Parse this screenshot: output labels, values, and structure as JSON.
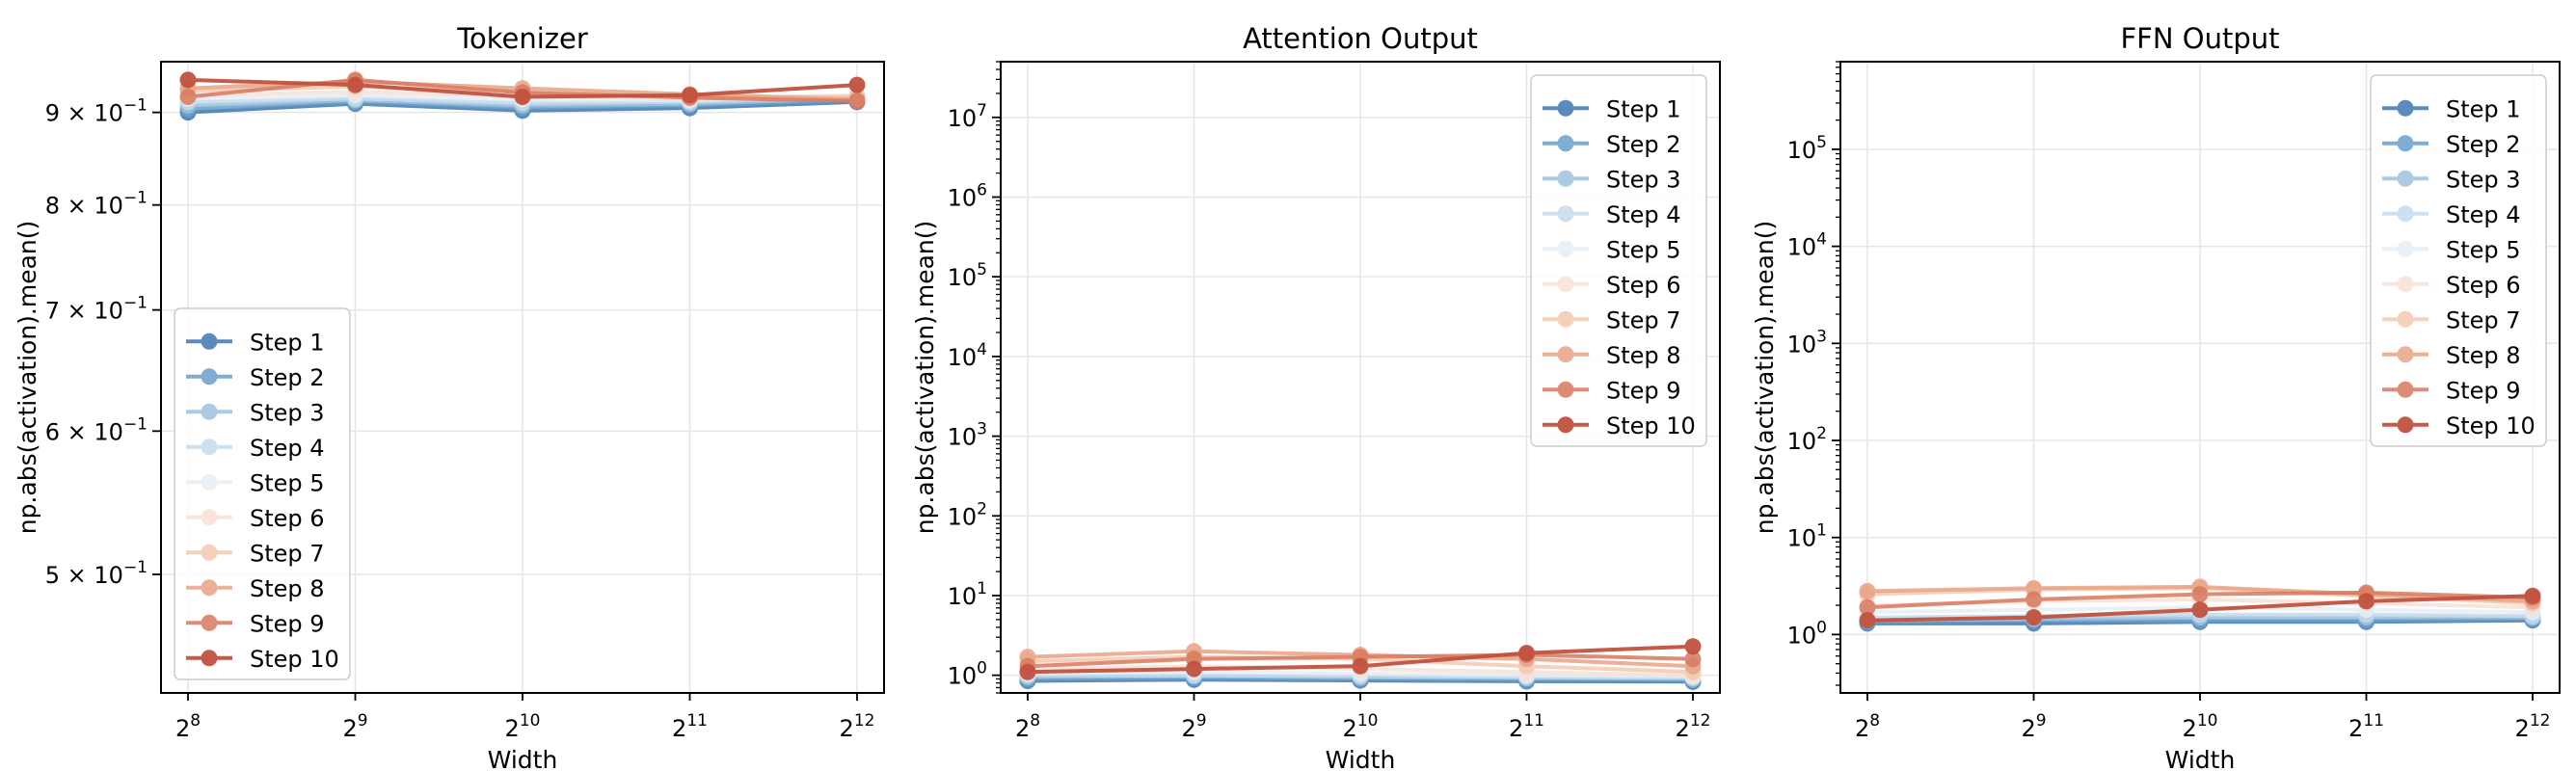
{
  "chart_data": [
    {
      "type": "line",
      "title": "Tokenizer",
      "xlabel": "Width",
      "ylabel": "np.abs(activation).mean()",
      "x_scale": "log2",
      "y_scale": "log",
      "x": [
        256,
        512,
        1024,
        2048,
        4096
      ],
      "x_ticks": [
        {
          "base": "2",
          "exp": "8"
        },
        {
          "base": "2",
          "exp": "9"
        },
        {
          "base": "2",
          "exp": "10"
        },
        {
          "base": "2",
          "exp": "11"
        },
        {
          "base": "2",
          "exp": "12"
        }
      ],
      "ylim": [
        0.43,
        0.96
      ],
      "y_ticks": [
        {
          "value": 0.9,
          "mant": "9 × 10",
          "exp": "−1"
        },
        {
          "value": 0.8,
          "mant": "8 × 10",
          "exp": "−1"
        },
        {
          "value": 0.7,
          "mant": "7 × 10",
          "exp": "−1"
        },
        {
          "value": 0.6,
          "mant": "6 × 10",
          "exp": "−1"
        },
        {
          "value": 0.5,
          "mant": "5 × 10",
          "exp": "−1"
        }
      ],
      "legend_position": "lower-left",
      "grid": true,
      "series": [
        {
          "name": "Step 1",
          "values": [
            0.9,
            0.91,
            0.902,
            0.905,
            0.912
          ]
        },
        {
          "name": "Step 2",
          "values": [
            0.904,
            0.912,
            0.905,
            0.908,
            0.914
          ]
        },
        {
          "name": "Step 3",
          "values": [
            0.908,
            0.914,
            0.908,
            0.91,
            0.916
          ]
        },
        {
          "name": "Step 4",
          "values": [
            0.912,
            0.916,
            0.911,
            0.912,
            0.918
          ]
        },
        {
          "name": "Step 5",
          "values": [
            0.916,
            0.92,
            0.915,
            0.914,
            0.919
          ]
        },
        {
          "name": "Step 6",
          "values": [
            0.92,
            0.924,
            0.919,
            0.916,
            0.92
          ]
        },
        {
          "name": "Step 7",
          "values": [
            0.925,
            0.93,
            0.924,
            0.918,
            0.918
          ]
        },
        {
          "name": "Step 8",
          "values": [
            0.928,
            0.936,
            0.928,
            0.921,
            0.915
          ]
        },
        {
          "name": "Step 9",
          "values": [
            0.918,
            0.938,
            0.923,
            0.917,
            0.913
          ]
        },
        {
          "name": "Step 10",
          "values": [
            0.938,
            0.932,
            0.918,
            0.92,
            0.932
          ]
        }
      ]
    },
    {
      "type": "line",
      "title": "Attention Output",
      "xlabel": "Width",
      "ylabel": "np.abs(activation).mean()",
      "x_scale": "log2",
      "y_scale": "log",
      "x": [
        256,
        512,
        1024,
        2048,
        4096
      ],
      "x_ticks": [
        {
          "base": "2",
          "exp": "8"
        },
        {
          "base": "2",
          "exp": "9"
        },
        {
          "base": "2",
          "exp": "10"
        },
        {
          "base": "2",
          "exp": "11"
        },
        {
          "base": "2",
          "exp": "12"
        }
      ],
      "ylim": [
        0.6,
        50000000
      ],
      "y_ticks": [
        {
          "value": 1,
          "mant": "10",
          "exp": "0"
        },
        {
          "value": 10,
          "mant": "10",
          "exp": "1"
        },
        {
          "value": 100,
          "mant": "10",
          "exp": "2"
        },
        {
          "value": 1000,
          "mant": "10",
          "exp": "3"
        },
        {
          "value": 10000,
          "mant": "10",
          "exp": "4"
        },
        {
          "value": 100000,
          "mant": "10",
          "exp": "5"
        },
        {
          "value": 1000000,
          "mant": "10",
          "exp": "6"
        },
        {
          "value": 10000000,
          "mant": "10",
          "exp": "7"
        }
      ],
      "legend_position": "upper-right",
      "grid": true,
      "series": [
        {
          "name": "Step 1",
          "values": [
            0.85,
            0.88,
            0.86,
            0.84,
            0.83
          ]
        },
        {
          "name": "Step 2",
          "values": [
            0.9,
            0.92,
            0.9,
            0.88,
            0.87
          ]
        },
        {
          "name": "Step 3",
          "values": [
            0.95,
            0.97,
            0.94,
            0.92,
            0.9
          ]
        },
        {
          "name": "Step 4",
          "values": [
            1.0,
            1.0,
            0.98,
            0.95,
            0.93
          ]
        },
        {
          "name": "Step 5",
          "values": [
            1.05,
            1.1,
            1.05,
            1.0,
            0.97
          ]
        },
        {
          "name": "Step 6",
          "values": [
            1.2,
            1.3,
            1.2,
            1.1,
            1.0
          ]
        },
        {
          "name": "Step 7",
          "values": [
            1.5,
            1.7,
            1.6,
            1.3,
            1.1
          ]
        },
        {
          "name": "Step 8",
          "values": [
            1.7,
            2.0,
            1.8,
            1.6,
            1.3
          ]
        },
        {
          "name": "Step 9",
          "values": [
            1.3,
            1.6,
            1.7,
            1.8,
            1.6
          ]
        },
        {
          "name": "Step 10",
          "values": [
            1.1,
            1.2,
            1.3,
            1.9,
            2.3
          ]
        }
      ]
    },
    {
      "type": "line",
      "title": "FFN Output",
      "xlabel": "Width",
      "ylabel": "np.abs(activation).mean()",
      "x_scale": "log2",
      "y_scale": "log",
      "x": [
        256,
        512,
        1024,
        2048,
        4096
      ],
      "x_ticks": [
        {
          "base": "2",
          "exp": "8"
        },
        {
          "base": "2",
          "exp": "9"
        },
        {
          "base": "2",
          "exp": "10"
        },
        {
          "base": "2",
          "exp": "11"
        },
        {
          "base": "2",
          "exp": "12"
        }
      ],
      "ylim": [
        0.25,
        800000
      ],
      "y_ticks": [
        {
          "value": 1,
          "mant": "10",
          "exp": "0"
        },
        {
          "value": 10,
          "mant": "10",
          "exp": "1"
        },
        {
          "value": 100,
          "mant": "10",
          "exp": "2"
        },
        {
          "value": 1000,
          "mant": "10",
          "exp": "3"
        },
        {
          "value": 10000,
          "mant": "10",
          "exp": "4"
        },
        {
          "value": 100000,
          "mant": "10",
          "exp": "5"
        }
      ],
      "legend_position": "upper-right",
      "grid": true,
      "series": [
        {
          "name": "Step 1",
          "values": [
            1.3,
            1.3,
            1.35,
            1.35,
            1.4
          ]
        },
        {
          "name": "Step 2",
          "values": [
            1.35,
            1.4,
            1.4,
            1.4,
            1.45
          ]
        },
        {
          "name": "Step 3",
          "values": [
            1.4,
            1.45,
            1.5,
            1.5,
            1.5
          ]
        },
        {
          "name": "Step 4",
          "values": [
            1.5,
            1.55,
            1.6,
            1.6,
            1.55
          ]
        },
        {
          "name": "Step 5",
          "values": [
            1.7,
            1.8,
            1.9,
            1.8,
            1.7
          ]
        },
        {
          "name": "Step 6",
          "values": [
            2.0,
            2.2,
            2.3,
            2.1,
            1.9
          ]
        },
        {
          "name": "Step 7",
          "values": [
            2.6,
            2.9,
            3.0,
            2.5,
            2.1
          ]
        },
        {
          "name": "Step 8",
          "values": [
            2.8,
            3.0,
            3.1,
            2.6,
            2.2
          ]
        },
        {
          "name": "Step 9",
          "values": [
            1.9,
            2.3,
            2.6,
            2.7,
            2.4
          ]
        },
        {
          "name": "Step 10",
          "values": [
            1.4,
            1.5,
            1.8,
            2.2,
            2.5
          ]
        }
      ]
    }
  ],
  "colors": {
    "series": [
      "#4a7fb5",
      "#6b9fcb",
      "#9cc3dd",
      "#c6dbec",
      "#e6eef5",
      "#f7e2d8",
      "#f4c8b0",
      "#e8a386",
      "#d8795f",
      "#c1523f"
    ],
    "series_opacity": [
      0.9,
      0.85,
      0.85,
      0.85,
      0.85,
      0.85,
      0.85,
      0.85,
      0.85,
      0.95
    ],
    "grid": "#e6e6e6",
    "axes": "#000000"
  }
}
